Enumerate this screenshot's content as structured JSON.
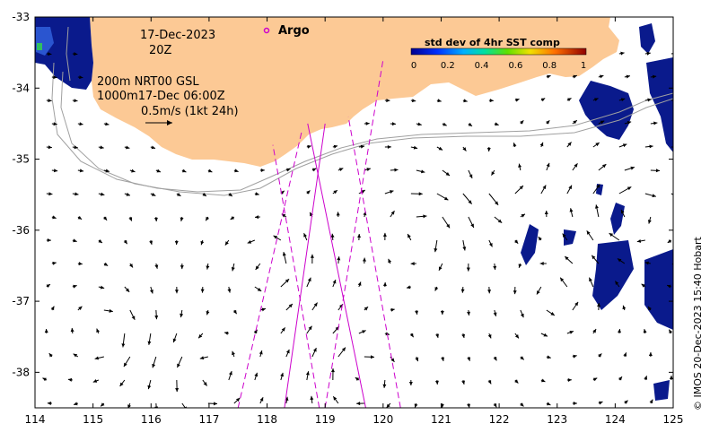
{
  "map": {
    "lon_ticks": [
      "114",
      "115",
      "116",
      "117",
      "118",
      "119",
      "120",
      "121",
      "122",
      "123",
      "124",
      "125"
    ],
    "lat_ticks": [
      "-33",
      "-34",
      "-35",
      "-36",
      "-37",
      "-38"
    ],
    "date_line1": "17-Dec-2023",
    "date_line2": "20Z",
    "depth_line1": "200m  NRT00 GSL",
    "depth_line2": "1000m17-Dec 06:00Z",
    "scale_label": "0.5m/s (1kt 24h)",
    "argo_label": "Argo",
    "credit": "© IMOS 20-Dec-2023 15:40 Hobart"
  },
  "colorbar": {
    "title": "std dev of 4hr SST comp",
    "ticks": [
      "0",
      "0.2",
      "0.4",
      "0.6",
      "0.8",
      "1"
    ]
  },
  "colors": {
    "land": "#fcc995",
    "track": "#cc00cc",
    "sst_dark": "#0a1a8c",
    "sst_mid": "#2a55d0"
  },
  "chart_data": {
    "type": "map",
    "xlim": [
      114,
      125
    ],
    "ylim": [
      -38.5,
      -33
    ],
    "tracks_solid": [
      [
        [
          118.3,
          -38.5
        ],
        [
          119.0,
          -34.5
        ]
      ],
      [
        [
          119.7,
          -38.5
        ],
        [
          118.7,
          -34.5
        ]
      ]
    ],
    "tracks_dashed": [
      [
        [
          117.5,
          -38.5
        ],
        [
          118.6,
          -34.6
        ]
      ],
      [
        [
          118.9,
          -38.5
        ],
        [
          118.1,
          -34.8
        ]
      ],
      [
        [
          119.0,
          -38.5
        ],
        [
          120.0,
          -33.6
        ]
      ],
      [
        [
          120.3,
          -38.5
        ],
        [
          119.4,
          -34.4
        ]
      ]
    ]
  }
}
